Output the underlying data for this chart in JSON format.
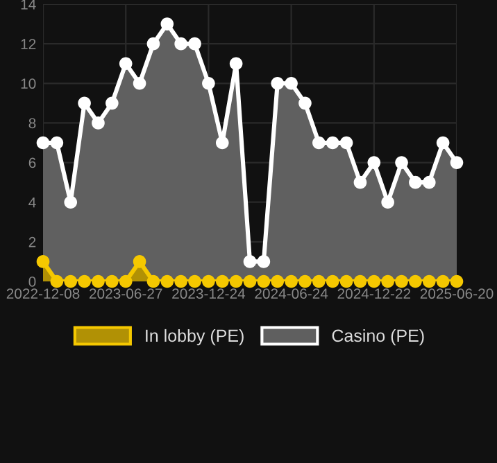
{
  "chart_data": {
    "type": "area",
    "categories": [
      "2022-12-08",
      null,
      null,
      null,
      null,
      null,
      "2023-06-27",
      null,
      null,
      null,
      null,
      null,
      "2023-12-24",
      null,
      null,
      null,
      null,
      null,
      "2024-06-24",
      null,
      null,
      null,
      null,
      null,
      "2024-12-22",
      null,
      null,
      null,
      null,
      null,
      "2025-06-20"
    ],
    "series": [
      {
        "name": "In lobby (PE)",
        "color": "#f5c800",
        "values": [
          1,
          0,
          0,
          0,
          0,
          0,
          0,
          1,
          0,
          0,
          0,
          0,
          0,
          0,
          0,
          0,
          0,
          0,
          0,
          0,
          0,
          0,
          0,
          0,
          0,
          0,
          0,
          0,
          0,
          0,
          0
        ]
      },
      {
        "name": "Casino (PE)",
        "color": "#ffffff",
        "values": [
          7,
          7,
          4,
          9,
          8,
          9,
          11,
          10,
          12,
          13,
          12,
          12,
          10,
          7,
          11,
          1,
          1,
          10,
          10,
          9,
          7,
          7,
          7,
          5,
          6,
          4,
          6,
          5,
          5,
          7,
          6
        ]
      }
    ],
    "ylim": [
      0,
      14
    ],
    "yticks": [
      0,
      2,
      4,
      6,
      8,
      10,
      12,
      14
    ],
    "grid": true,
    "legend": "bottom",
    "marker": "circle",
    "line_style": "solid"
  }
}
